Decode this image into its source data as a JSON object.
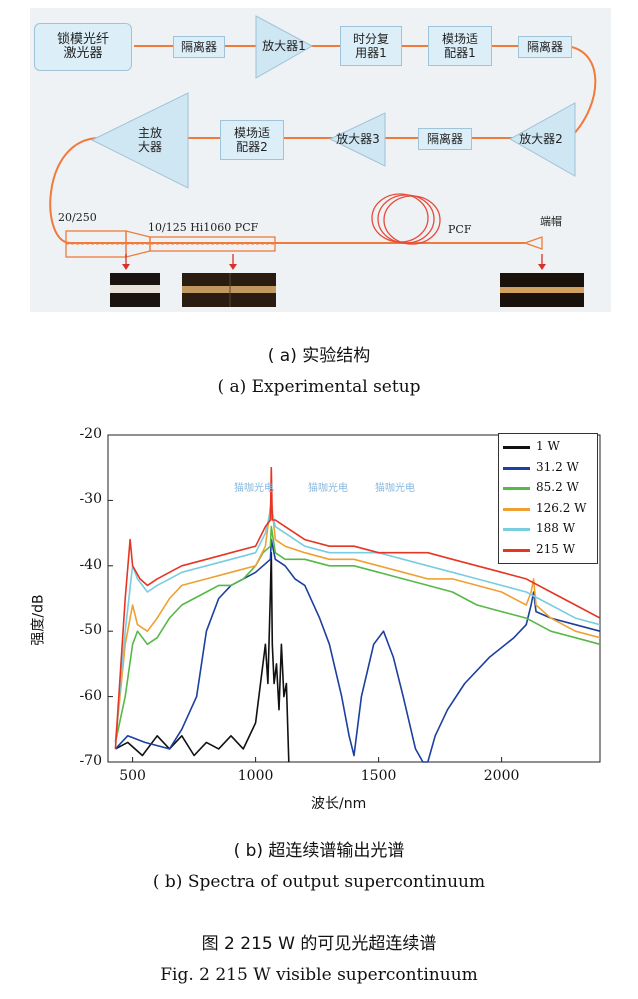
{
  "setup": {
    "boxes": {
      "laser": "锁模光纤\n激光器",
      "isolator1": "隔离器",
      "amp1": "放大器1",
      "tdm1": "时分复\n用器1",
      "mode_adapter1": "模场适\n配器1",
      "isolator2": "隔离器",
      "amp2": "放大器2",
      "isolator3": "隔离器",
      "amp3": "放大器3",
      "mode_adapter2": "模场适\n配器2",
      "main_amp": "主放\n大器"
    },
    "fiber_labels": {
      "left_fiber": "20/250",
      "mid_fiber": "10/125 Hi1060 PCF",
      "pcf": "PCF",
      "endcap": "端帽"
    },
    "colors": {
      "fiber": "#f07a3a",
      "box_fill": "#dceef8",
      "tri_fill": "#cfe6f3"
    }
  },
  "captions": {
    "a_zh": "( a)  实验结构",
    "a_en": "( a)  Experimental setup",
    "b_zh": "( b)  超连续谱输出光谱",
    "b_en": "( b)  Spectra of output supercontinuum",
    "fig_zh": "图 2    215 W 的可见光超连续谱",
    "fig_en": "Fig. 2    215 W visible supercontinuum"
  },
  "watermark": {
    "text": "猫咖光电"
  },
  "chart_data": {
    "type": "line",
    "xlabel": "波长/nm",
    "ylabel": "强度/dB",
    "xlim": [
      400,
      2400
    ],
    "ylim": [
      -70,
      -20
    ],
    "xticks": [
      500,
      1000,
      1500,
      2000
    ],
    "yticks": [
      -20,
      -30,
      -40,
      -50,
      -60,
      -70
    ],
    "legend_position": "top-right",
    "series": [
      {
        "name": "1 W",
        "color": "#111111",
        "x": [
          430,
          480,
          540,
          600,
          650,
          700,
          750,
          800,
          850,
          900,
          950,
          1000,
          1020,
          1040,
          1050,
          1060,
          1064,
          1068,
          1075,
          1085,
          1095,
          1105,
          1115,
          1125,
          1135
        ],
        "y": [
          -68,
          -67,
          -69,
          -66,
          -68,
          -66,
          -69,
          -67,
          -68,
          -66,
          -68,
          -64,
          -58,
          -52,
          -58,
          -44,
          -38,
          -52,
          -58,
          -55,
          -62,
          -52,
          -60,
          -58,
          -70
        ]
      },
      {
        "name": "31.2 W",
        "color": "#1c3fa0",
        "x": [
          430,
          480,
          550,
          650,
          700,
          760,
          800,
          850,
          900,
          950,
          1000,
          1030,
          1060,
          1064,
          1080,
          1120,
          1160,
          1200,
          1260,
          1300,
          1350,
          1380,
          1400,
          1430,
          1480,
          1520,
          1560,
          1600,
          1650,
          1680,
          1700,
          1730,
          1780,
          1850,
          1950,
          2050,
          2100,
          2120,
          2130,
          2140,
          2200,
          2300,
          2400
        ],
        "y": [
          -68,
          -66,
          -67,
          -68,
          -65,
          -60,
          -50,
          -45,
          -43,
          -42,
          -41,
          -40,
          -39,
          -36,
          -39,
          -40,
          -42,
          -43,
          -48,
          -52,
          -60,
          -66,
          -69,
          -60,
          -52,
          -50,
          -54,
          -60,
          -68,
          -70,
          -70,
          -66,
          -62,
          -58,
          -54,
          -51,
          -49,
          -46,
          -44,
          -47,
          -48,
          -49,
          -50
        ]
      },
      {
        "name": "85.2 W",
        "color": "#57b848",
        "x": [
          430,
          470,
          500,
          520,
          560,
          600,
          650,
          700,
          750,
          800,
          850,
          900,
          950,
          1000,
          1030,
          1060,
          1064,
          1080,
          1120,
          1200,
          1300,
          1400,
          1500,
          1600,
          1700,
          1800,
          1900,
          2000,
          2100,
          2200,
          2300,
          2400
        ],
        "y": [
          -67,
          -60,
          -52,
          -50,
          -52,
          -51,
          -48,
          -46,
          -45,
          -44,
          -43,
          -43,
          -42,
          -40,
          -38,
          -37,
          -34,
          -38,
          -39,
          -39,
          -40,
          -40,
          -41,
          -42,
          -43,
          -44,
          -46,
          -47,
          -48,
          -50,
          -51,
          -52
        ]
      },
      {
        "name": "126.2 W",
        "color": "#f0a030",
        "x": [
          430,
          470,
          500,
          520,
          560,
          600,
          650,
          700,
          800,
          900,
          1000,
          1040,
          1064,
          1080,
          1120,
          1200,
          1300,
          1400,
          1500,
          1600,
          1700,
          1800,
          1900,
          2000,
          2100,
          2120,
          2130,
          2140,
          2200,
          2300,
          2400
        ],
        "y": [
          -67,
          -52,
          -46,
          -49,
          -50,
          -48,
          -45,
          -43,
          -42,
          -41,
          -40,
          -37,
          -30,
          -36,
          -37,
          -38,
          -39,
          -39,
          -40,
          -41,
          -42,
          -42,
          -43,
          -44,
          -46,
          -44,
          -42,
          -46,
          -48,
          -50,
          -51
        ]
      },
      {
        "name": "188 W",
        "color": "#78cde0",
        "x": [
          430,
          470,
          500,
          520,
          560,
          600,
          650,
          700,
          800,
          900,
          1000,
          1040,
          1064,
          1080,
          1120,
          1200,
          1300,
          1400,
          1500,
          1600,
          1700,
          1800,
          1900,
          2000,
          2100,
          2200,
          2300,
          2400
        ],
        "y": [
          -67,
          -50,
          -40,
          -42,
          -44,
          -43,
          -42,
          -41,
          -40,
          -39,
          -38,
          -35,
          -31,
          -34,
          -35,
          -37,
          -38,
          -38,
          -38,
          -39,
          -40,
          -41,
          -42,
          -43,
          -44,
          -46,
          -48,
          -49
        ]
      },
      {
        "name": "215 W",
        "color": "#e63522",
        "x": [
          430,
          470,
          490,
          500,
          530,
          560,
          600,
          650,
          700,
          800,
          900,
          1000,
          1040,
          1060,
          1064,
          1068,
          1080,
          1120,
          1200,
          1300,
          1400,
          1500,
          1600,
          1700,
          1800,
          1900,
          2000,
          2100,
          2200,
          2300,
          2400
        ],
        "y": [
          -68,
          -45,
          -36,
          -40,
          -42,
          -43,
          -42,
          -41,
          -40,
          -39,
          -38,
          -37,
          -34,
          -33,
          -25,
          -33,
          -33,
          -34,
          -36,
          -37,
          -37,
          -38,
          -38,
          -38,
          -39,
          -40,
          -41,
          -42,
          -44,
          -46,
          -48
        ]
      }
    ]
  }
}
